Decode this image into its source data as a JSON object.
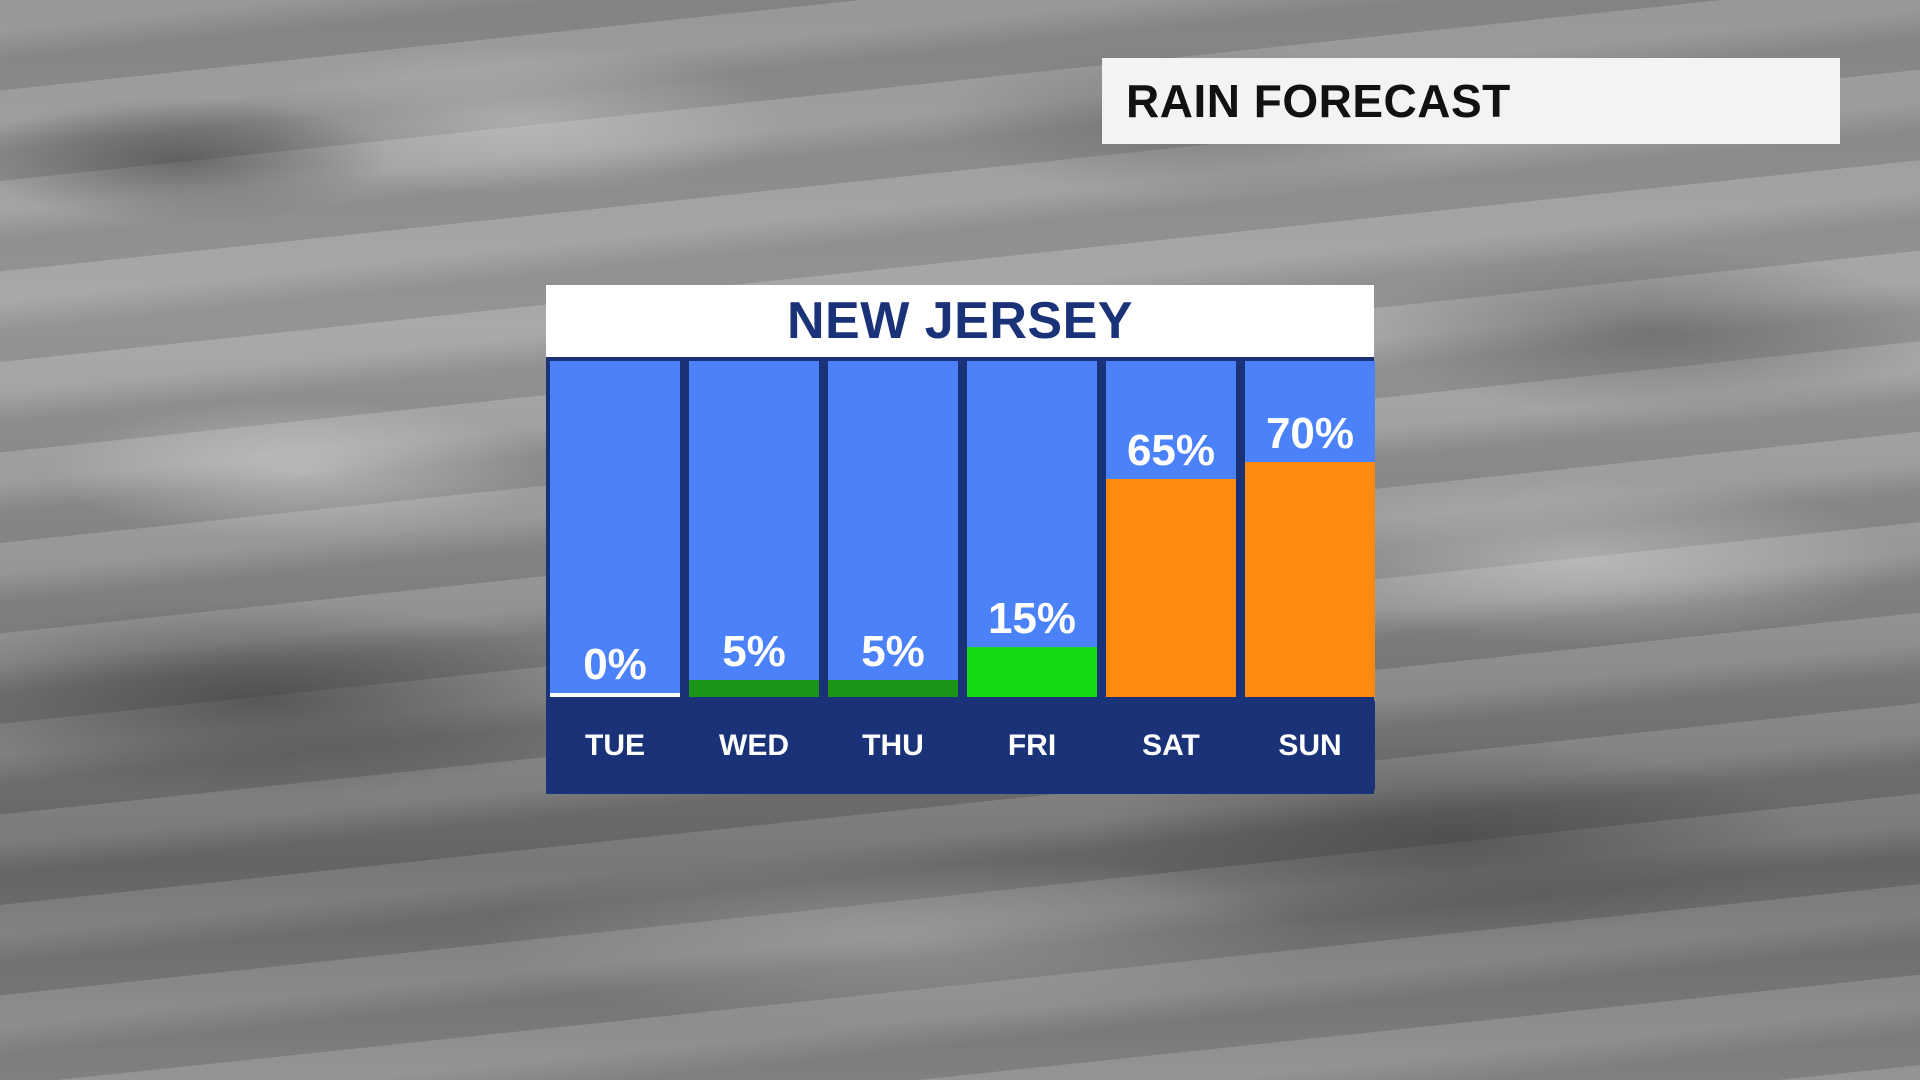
{
  "headline": {
    "text": "RAIN FORECAST"
  },
  "panel": {
    "title": "NEW JERSEY"
  },
  "colors": {
    "sky": "#4b82fa",
    "frame": "#1a3278",
    "zero": "#ffffff",
    "low": "#1a9618",
    "medium": "#14d914",
    "high": "#ff8a10"
  },
  "chart_data": {
    "type": "bar",
    "title": "NEW JERSEY",
    "categories": [
      "TUE",
      "WED",
      "THU",
      "FRI",
      "SAT",
      "SUN"
    ],
    "values": [
      0,
      5,
      5,
      15,
      65,
      70
    ],
    "value_labels": [
      "0%",
      "5%",
      "5%",
      "15%",
      "65%",
      "70%"
    ],
    "bar_colors": [
      "#ffffff",
      "#1a9618",
      "#1a9618",
      "#14d914",
      "#ff8a10",
      "#ff8a10"
    ],
    "ylim": [
      0,
      100
    ],
    "grid": false,
    "legend": "none"
  }
}
